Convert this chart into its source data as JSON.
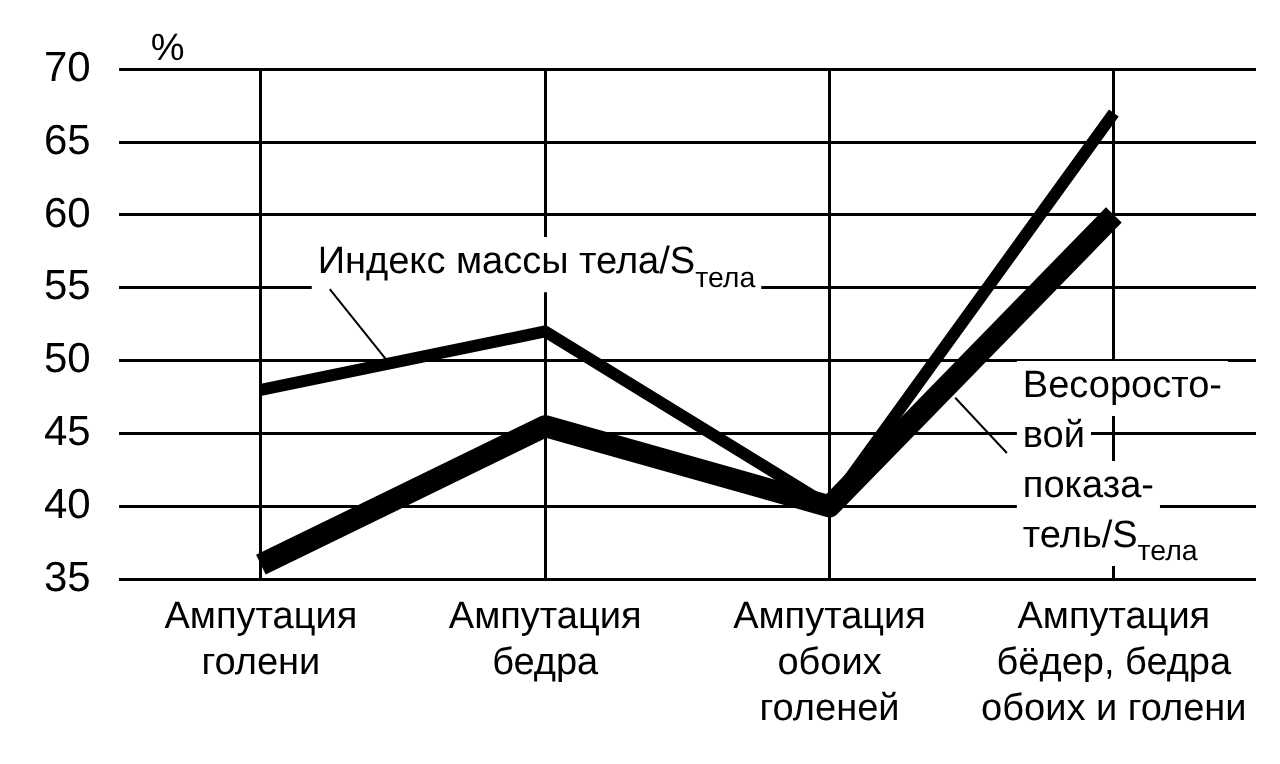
{
  "chart_data": {
    "type": "line",
    "ylabel": "%",
    "categories": [
      "Ампутация\nголени",
      "Ампутация\nбедра",
      "Ампутация\nобоих\nголеней",
      "Ампутация\nбёдер, бедра\nобоих и голени"
    ],
    "series": [
      {
        "name": "Индекс массы тела/S$_{тела}$",
        "color": "#000000",
        "values": [
          48,
          52,
          40,
          67
        ]
      },
      {
        "name": "Весоросто-\nвой\nпоказа-\nтель/S$_{тела}$",
        "color": "#000000",
        "values": [
          36,
          45.5,
          40,
          60
        ]
      }
    ],
    "ylim": [
      35,
      70
    ],
    "yticks": [
      35,
      40,
      45,
      50,
      55,
      60,
      65,
      70
    ],
    "grid": true,
    "legend": false,
    "marker": "none",
    "line_style": "solid"
  }
}
